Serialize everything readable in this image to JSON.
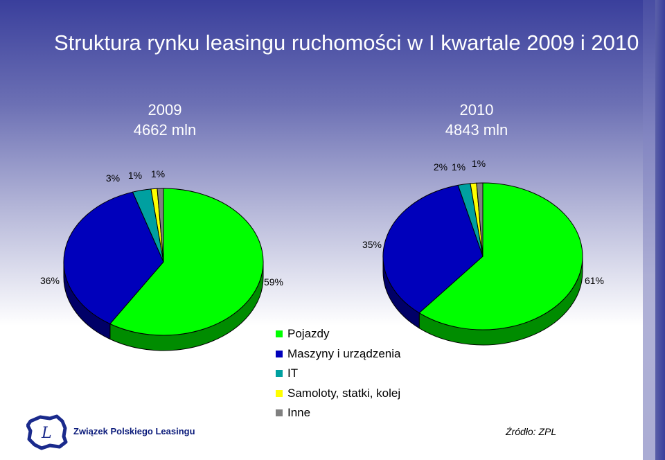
{
  "title": "Struktura rynku leasingu ruchomości w I kwartale 2009 i 2010",
  "source": "Źródło: ZPL",
  "org_name": "Związek Polskiego Leasingu",
  "logo_icon": "zpl-logo-icon",
  "colors": {
    "Pojazdy": "#00ff00",
    "Maszyny i urządzenia": "#0000bb",
    "IT": "#00a0a0",
    "Samoloty, statki, kolej": "#ffff00",
    "Inne": "#808080"
  },
  "chart_data": [
    {
      "type": "pie",
      "title": "2009",
      "subtitle": "4662 mln",
      "categories": [
        "Pojazdy",
        "Maszyny i urządzenia",
        "IT",
        "Samoloty, statki, kolej",
        "Inne"
      ],
      "values": [
        59,
        36,
        3,
        1,
        1
      ],
      "labels": [
        "59%",
        "36%",
        "3%",
        "1%",
        "1%"
      ]
    },
    {
      "type": "pie",
      "title": "2010",
      "subtitle": "4843 mln",
      "categories": [
        "Pojazdy",
        "Maszyny i urządzenia",
        "IT",
        "Samoloty, statki, kolej",
        "Inne"
      ],
      "values": [
        61,
        35,
        2,
        1,
        1
      ],
      "labels": [
        "61%",
        "35%",
        "2%",
        "1%",
        "1%"
      ]
    }
  ],
  "legend": [
    "Pojazdy",
    "Maszyny i urządzenia",
    "IT",
    "Samoloty, statki, kolej",
    "Inne"
  ]
}
